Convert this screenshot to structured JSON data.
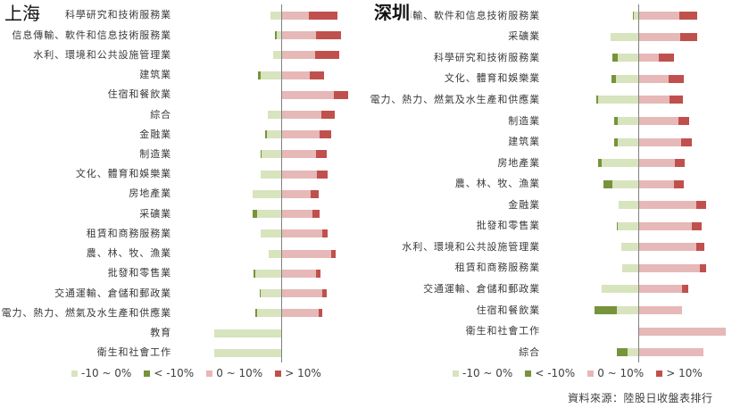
{
  "panels": {
    "left": {
      "title": "上海"
    },
    "right": {
      "title": "深圳"
    }
  },
  "legend": {
    "items": [
      {
        "label": "-10 ~ 0%",
        "color": "#D7E4BD"
      },
      {
        "label": "< -10%",
        "color": "#77933C"
      },
      {
        "label": "0 ~ 10%",
        "color": "#E6B8B7"
      },
      {
        "label": "> 10%",
        "color": "#C0504D"
      }
    ]
  },
  "source": "資料來源：陸股日收盤表排行",
  "chart_data": [
    {
      "type": "bar",
      "orientation": "horizontal-diverging-stacked",
      "title": "上海",
      "xlabel": "",
      "ylabel": "",
      "unit": "% of stocks",
      "xlim": [
        -100,
        100
      ],
      "grid": false,
      "legend_position": "bottom",
      "categories": [
        "科學研究和技術服務業",
        "信息傳輸、軟件和信息技術服務業",
        "水利、環境和公共設施管理業",
        "建筑業",
        "住宿和餐飲業",
        "綜合",
        "金融業",
        "制造業",
        "文化、體育和娛樂業",
        "房地產業",
        "采礦業",
        "租賃和商務服務業",
        "農、林、牧、漁業",
        "批發和零售業",
        "交通運輸、倉儲和郵政業",
        "電力、熱力、燃氣及水生產和供應業",
        "教育",
        "衛生和社會工作"
      ],
      "series": [
        {
          "name": "-10 ~ 0%",
          "color": "#D7E4BD",
          "values": [
            -16.1,
            -7.1,
            -12.4,
            -30.4,
            0,
            -19.7,
            -21.4,
            -29.0,
            -31.2,
            -42.8,
            -36.5,
            -30.4,
            -18.3,
            -39.2,
            -30.8,
            -36.5,
            -100,
            -100
          ]
        },
        {
          "name": "< -10%",
          "color": "#77933C",
          "values": [
            0,
            -2.7,
            0,
            -4.9,
            0,
            0,
            -3.1,
            -1.7,
            0,
            0,
            -6.3,
            0,
            0,
            -1.7,
            -1.7,
            -1.7,
            0,
            0
          ]
        },
        {
          "name": "0 ~ 10%",
          "color": "#E6B8B7",
          "values": [
            42.0,
            51.8,
            50.4,
            42.8,
            79.4,
            59.8,
            58.0,
            51.8,
            53.5,
            44.6,
            46.5,
            62.0,
            75.0,
            52.2,
            61.6,
            55.8,
            0,
            0
          ]
        },
        {
          "name": "> 10%",
          "color": "#C0504D",
          "values": [
            41.9,
            38.4,
            37.2,
            21.8,
            21.0,
            20.5,
            17.4,
            17.0,
            15.7,
            12.0,
            10.7,
            7.6,
            6.7,
            6.7,
            6.3,
            5.4,
            0,
            0
          ]
        }
      ]
    },
    {
      "type": "bar",
      "orientation": "horizontal-diverging-stacked",
      "title": "深圳",
      "xlabel": "",
      "ylabel": "",
      "unit": "% of stocks",
      "xlim": [
        -100,
        100
      ],
      "grid": false,
      "legend_position": "bottom",
      "categories": [
        "信息傳輸、軟件和信息技術服務業",
        "采礦業",
        "科學研究和技術服務業",
        "文化、體育和娛樂業",
        "電力、熱力、燃氣及水生產和供應業",
        "制造業",
        "建筑業",
        "房地產業",
        "農、林、牧、漁業",
        "金融業",
        "批發和零售業",
        "水利、環境和公共設施管理業",
        "租賃和商務服務業",
        "交通運輸、倉儲和郵政業",
        "住宿和餐飲業",
        "衛生和社會工作",
        "綜合"
      ],
      "series": [
        {
          "name": "-10 ~ 0%",
          "color": "#D7E4BD",
          "values": [
            -4.8,
            -31.7,
            -23.5,
            -25.9,
            -45.8,
            -23.5,
            -23.2,
            -41.7,
            -29.7,
            -22.2,
            -23.2,
            -19.1,
            -18.4,
            -42.3,
            -24.9,
            0,
            -12.3
          ]
        },
        {
          "name": "< -10%",
          "color": "#77933C",
          "values": [
            -1.7,
            0,
            -5.8,
            -4.8,
            -2.4,
            -3.8,
            -4.1,
            -4.8,
            -10.5,
            0,
            -1.0,
            0,
            0,
            0,
            -24.9,
            0,
            -12.6
          ]
        },
        {
          "name": "0 ~ 10%",
          "color": "#E6B8B7",
          "values": [
            47.4,
            47.8,
            23.5,
            35.1,
            36.1,
            45.8,
            49.1,
            41.7,
            40.6,
            66.5,
            61.7,
            66.5,
            70.3,
            49.8,
            49.8,
            100,
            74.7
          ]
        },
        {
          "name": "> 10%",
          "color": "#C0504D",
          "values": [
            20.2,
            19.8,
            17.4,
            17.1,
            15.0,
            12.6,
            12.3,
            11.6,
            11.3,
            11.3,
            11.0,
            9.2,
            7.5,
            7.2,
            0,
            0,
            0
          ]
        }
      ]
    }
  ]
}
